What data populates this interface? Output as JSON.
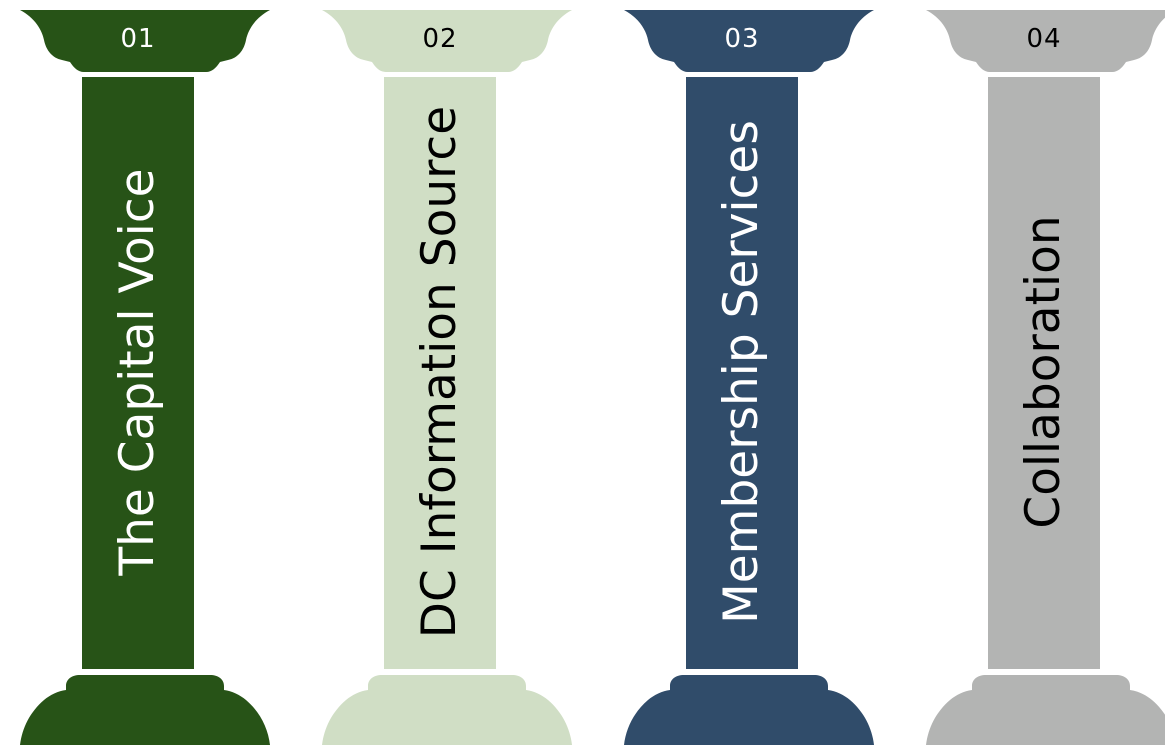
{
  "pillars": [
    {
      "number": "01",
      "label": "The Capital Voice",
      "color": "#275317",
      "text_color": "#ffffff"
    },
    {
      "number": "02",
      "label": "DC Information Source",
      "color": "#d0dec5",
      "text_color": "#000000"
    },
    {
      "number": "03",
      "label": "Membership Services",
      "color": "#304c6a",
      "text_color": "#ffffff"
    },
    {
      "number": "04",
      "label": "Collaboration",
      "color": "#b3b4b3",
      "text_color": "#000000"
    }
  ]
}
